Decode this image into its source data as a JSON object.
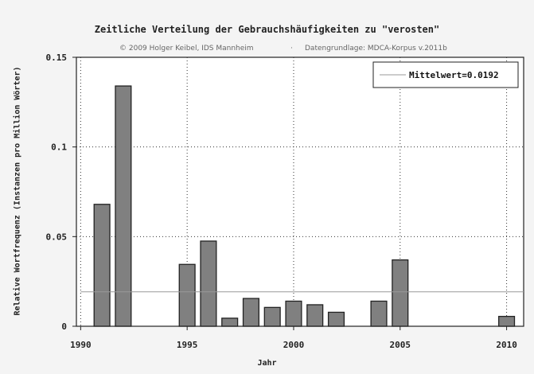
{
  "chart_data": {
    "type": "bar",
    "title": "Zeitliche Verteilung der Gebrauchshäufigkeiten zu \"verosten\"",
    "credit": "© 2009 Holger Keibel, IDS Mannheim",
    "credit_separator": "·",
    "source": "Datengrundlage: MDCA-Korpus v.2011b",
    "xlabel": "Jahr",
    "ylabel": "Relative Wortfrequenz (Instanzen pro Million Wörter)",
    "xlim": [
      1989.8,
      2010.8
    ],
    "ylim": [
      0,
      0.15
    ],
    "x_ticks": [
      {
        "value": 1990,
        "label": "1990"
      },
      {
        "value": 1995,
        "label": "1995"
      },
      {
        "value": 2000,
        "label": "2000"
      },
      {
        "value": 2005,
        "label": "2005"
      },
      {
        "value": 2010,
        "label": "2010"
      }
    ],
    "y_ticks": [
      {
        "value": 0,
        "label": "0"
      },
      {
        "value": 0.05,
        "label": "0.05"
      },
      {
        "value": 0.1,
        "label": "0.1"
      },
      {
        "value": 0.15,
        "label": "0.15"
      }
    ],
    "grid": true,
    "legend_position": "top-right",
    "mean": {
      "label": "Mittelwert=0.0192",
      "value": 0.0192
    },
    "x": [
      1990,
      1991,
      1992,
      1993,
      1994,
      1995,
      1996,
      1997,
      1998,
      1999,
      2000,
      2001,
      2002,
      2003,
      2004,
      2005,
      2006,
      2007,
      2008,
      2009,
      2010
    ],
    "values": [
      0,
      0.068,
      0.134,
      0,
      0,
      0.0345,
      0.0475,
      0.0045,
      0.0155,
      0.0105,
      0.014,
      0.012,
      0.0078,
      0,
      0.014,
      0.037,
      0,
      0,
      0,
      0,
      0.0055
    ],
    "colors": {
      "bar_fill": "#808080",
      "bar_stroke": "#222222",
      "mean_line": "#999999",
      "grid": "#333333"
    }
  }
}
